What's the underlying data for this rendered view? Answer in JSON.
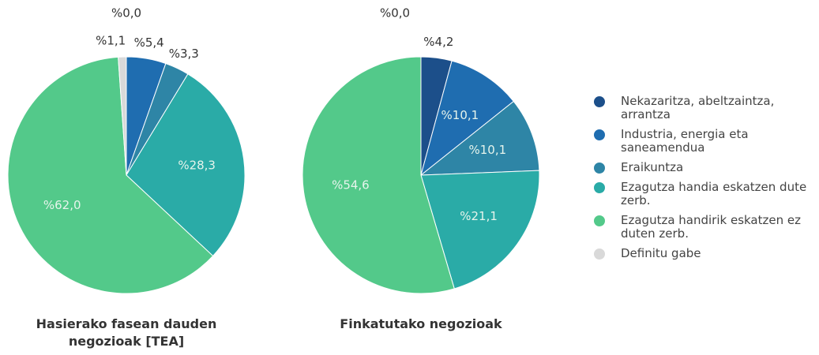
{
  "chart_data": [
    {
      "type": "pie",
      "title": "Hasierako fasean dauden negozioak [TEA]",
      "values": [
        0.0,
        5.4,
        3.3,
        28.3,
        62.0,
        1.1
      ],
      "value_labels": [
        "%0,0",
        "%5,4",
        "%3,3",
        "%28,3",
        "%62,0",
        "%1,1"
      ]
    },
    {
      "type": "pie",
      "title": "Finkatutako negozioak",
      "values": [
        4.2,
        10.1,
        10.1,
        21.1,
        54.6,
        0.0
      ],
      "value_labels": [
        "%4,2",
        "%10,1",
        "%10,1",
        "%21,1",
        "%54,6",
        "%0,0"
      ]
    }
  ],
  "legend": {
    "categories": [
      "Nekazaritza, abeltzaintza, arrantza",
      "Industria, energia eta saneamendua",
      "Eraikuntza",
      "Ezagutza handia eskatzen dute zerb.",
      "Ezagutza handirik eskatzen ez duten zerb.",
      "Definitu gabe"
    ],
    "colors": [
      "#1c4f8a",
      "#1f6db0",
      "#2e85a6",
      "#2aaba7",
      "#53c98a",
      "#d9d9d9"
    ]
  }
}
